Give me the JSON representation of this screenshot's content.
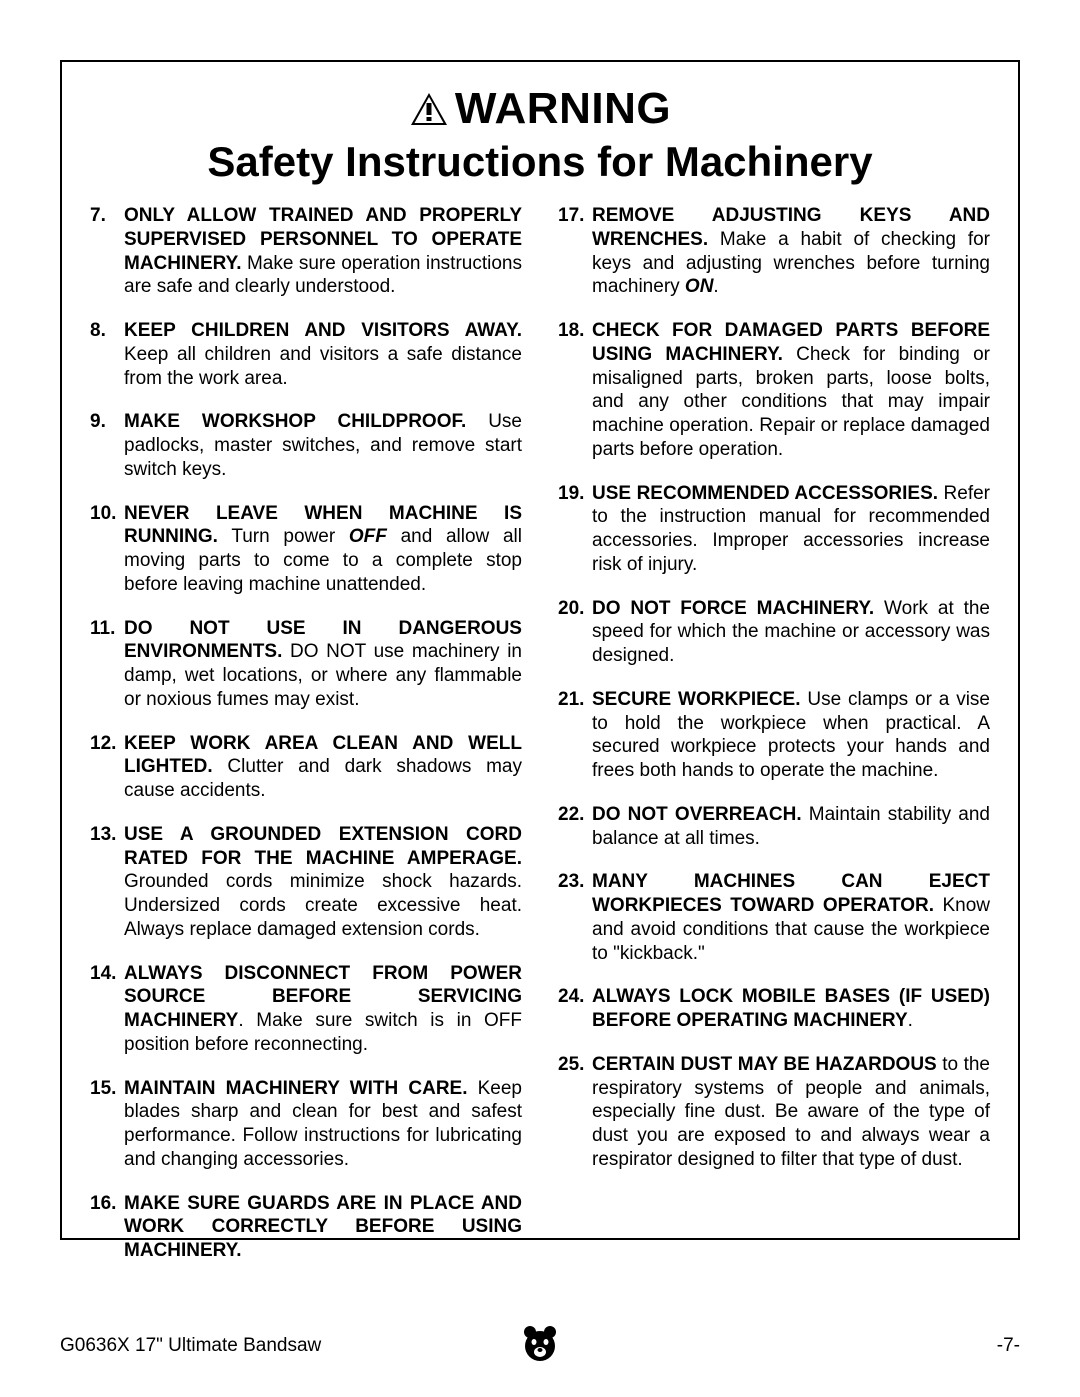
{
  "header": {
    "warning": "WARNING",
    "subtitle": "Safety Instructions for Machinery"
  },
  "left": [
    {
      "n": "7.",
      "bold": "ONLY ALLOW TRAINED AND PROPERLY SUPERVISED PERSONNEL TO OPERATE MACHINERY.",
      "rest": " Make sure operation instructions are safe and clearly understood."
    },
    {
      "n": "8.",
      "bold": "KEEP CHILDREN AND VISITORS AWAY.",
      "rest": " Keep all children and visitors a safe distance from the work area."
    },
    {
      "n": "9.",
      "bold": "MAKE WORKSHOP CHILDPROOF.",
      "rest": " Use padlocks, master switches, and remove start switch keys."
    },
    {
      "n": "10.",
      "bold": "NEVER LEAVE WHEN MACHINE IS RUNNING.",
      "rest": " Turn power ",
      "bi": "OFF",
      "rest2": " and allow all moving parts to come to a complete stop before leaving machine unattended."
    },
    {
      "n": "11.",
      "bold": "DO NOT USE IN DANGEROUS ENVIRONMENTS.",
      "rest": " DO NOT use machinery in damp, wet locations, or where any flammable or noxious fumes may exist."
    },
    {
      "n": "12.",
      "bold": "KEEP WORK AREA CLEAN AND WELL LIGHTED.",
      "rest": " Clutter and dark shadows may cause accidents."
    },
    {
      "n": "13.",
      "bold": "USE A GROUNDED EXTENSION CORD RATED FOR THE MACHINE AMPERAGE.",
      "rest": " Grounded cords minimize shock hazards. Undersized cords create excessive heat. Always replace damaged extension cords."
    },
    {
      "n": "14.",
      "bold": "ALWAYS DISCONNECT FROM POWER SOURCE BEFORE SERVICING MACHINERY",
      "rest": ". Make sure switch is in OFF position before reconnecting."
    },
    {
      "n": "15.",
      "bold": "MAINTAIN MACHINERY WITH CARE.",
      "rest": " Keep blades sharp and clean for best and safest performance. Follow instructions for lubricating and changing accessories."
    },
    {
      "n": "16.",
      "bold": "MAKE SURE GUARDS ARE IN PLACE AND WORK CORRECTLY BEFORE USING MACHINERY.",
      "rest": ""
    }
  ],
  "right": [
    {
      "n": "17.",
      "bold": "REMOVE ADJUSTING KEYS AND WRENCHES.",
      "rest": " Make a habit of checking for keys and adjusting wrenches before turning machinery ",
      "bi": "ON",
      "rest2": "."
    },
    {
      "n": "18.",
      "bold": "CHECK FOR DAMAGED PARTS BEFORE USING MACHINERY.",
      "rest": " Check for binding or misaligned parts, broken parts, loose bolts, and any other conditions that may impair machine operation. Repair or replace damaged parts before operation."
    },
    {
      "n": "19.",
      "bold": "USE RECOMMENDED ACCESSORIES.",
      "rest": " Refer to the instruction manual for recommended accessories. Improper accessories increase risk of injury."
    },
    {
      "n": "20.",
      "bold": "DO NOT FORCE MACHINERY.",
      "rest": " Work at the speed for which the machine or accessory was designed."
    },
    {
      "n": "21.",
      "bold": "SECURE WORKPIECE.",
      "rest": " Use clamps or a vise to hold the workpiece when practical. A secured workpiece protects your hands and frees both hands to operate the machine."
    },
    {
      "n": "22.",
      "bold": "DO NOT OVERREACH.",
      "rest": " Maintain stability and balance at all times."
    },
    {
      "n": "23.",
      "bold": "MANY MACHINES CAN EJECT WORKPIECES TOWARD OPERATOR.",
      "rest": " Know and avoid conditions that cause the workpiece to \"kickback.\""
    },
    {
      "n": "24.",
      "bold": "ALWAYS LOCK MOBILE BASES (IF USED) BEFORE OPERATING MACHINERY",
      "rest": "."
    },
    {
      "n": "25.",
      "bold": "CERTAIN DUST MAY BE HAZARDOUS",
      "rest": " to the respiratory systems of people and animals, especially fine dust. Be aware of the type of dust you are exposed to and always wear a respirator designed to filter that type of dust."
    }
  ],
  "footer": {
    "left": "G0636X 17\" Ultimate Bandsaw",
    "right": "-7-"
  }
}
